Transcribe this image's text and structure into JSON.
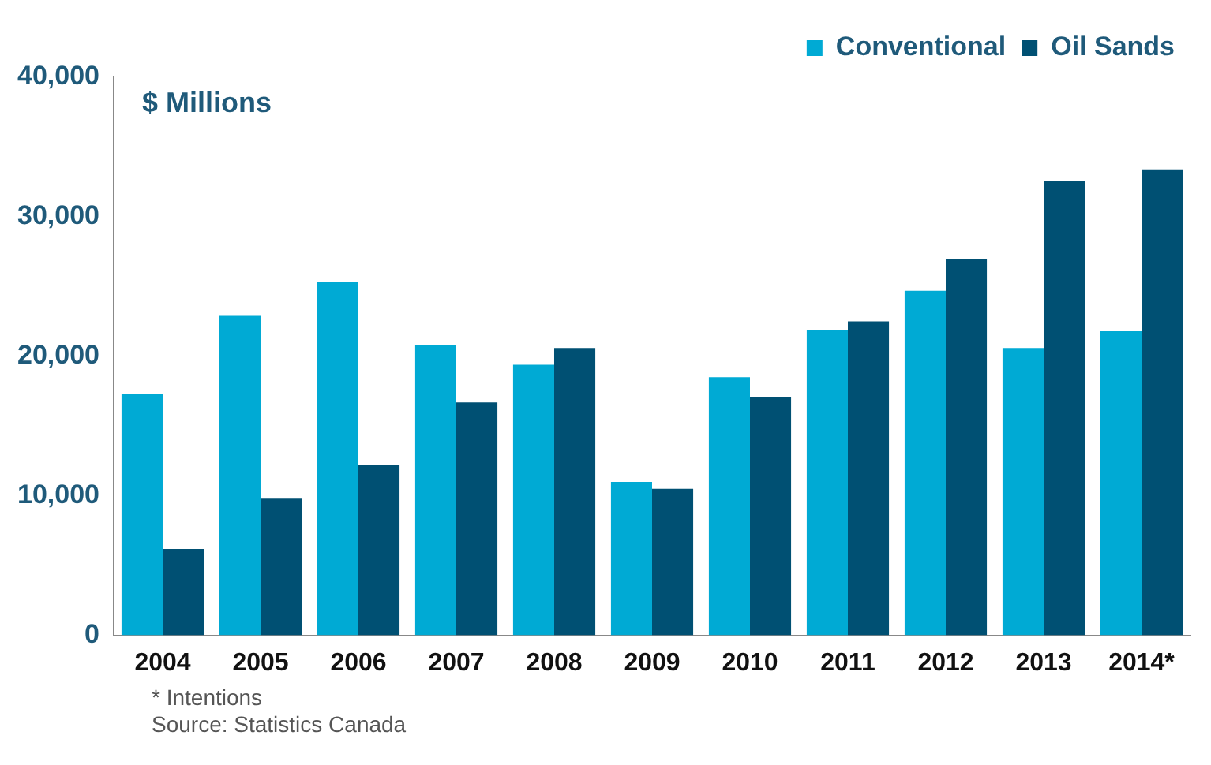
{
  "chart_data": {
    "type": "bar",
    "ylabel": "$ Millions",
    "categories": [
      "2004",
      "2005",
      "2006",
      "2007",
      "2008",
      "2009",
      "2010",
      "2011",
      "2012",
      "2013",
      "2014*"
    ],
    "series": [
      {
        "name": "Conventional",
        "color": "#00aad4",
        "values": [
          17300,
          22900,
          25300,
          20800,
          19400,
          11000,
          18500,
          21900,
          24700,
          20600,
          21800
        ]
      },
      {
        "name": "Oil Sands",
        "color": "#005073",
        "values": [
          6200,
          9800,
          12200,
          16700,
          20600,
          10500,
          17100,
          22500,
          27000,
          32600,
          33400
        ]
      }
    ],
    "ylim": [
      0,
      40000
    ],
    "yticks": [
      0,
      {
        "value": 10000,
        "label": "10,000"
      },
      {
        "value": 20000,
        "label": "20,000"
      },
      {
        "value": 30000,
        "label": "30,000"
      },
      {
        "value": 40000,
        "label": "40,000"
      }
    ],
    "grid": false,
    "legend": "top",
    "annotations": [
      "* Intentions",
      "Source:  Statistics Canada"
    ]
  }
}
